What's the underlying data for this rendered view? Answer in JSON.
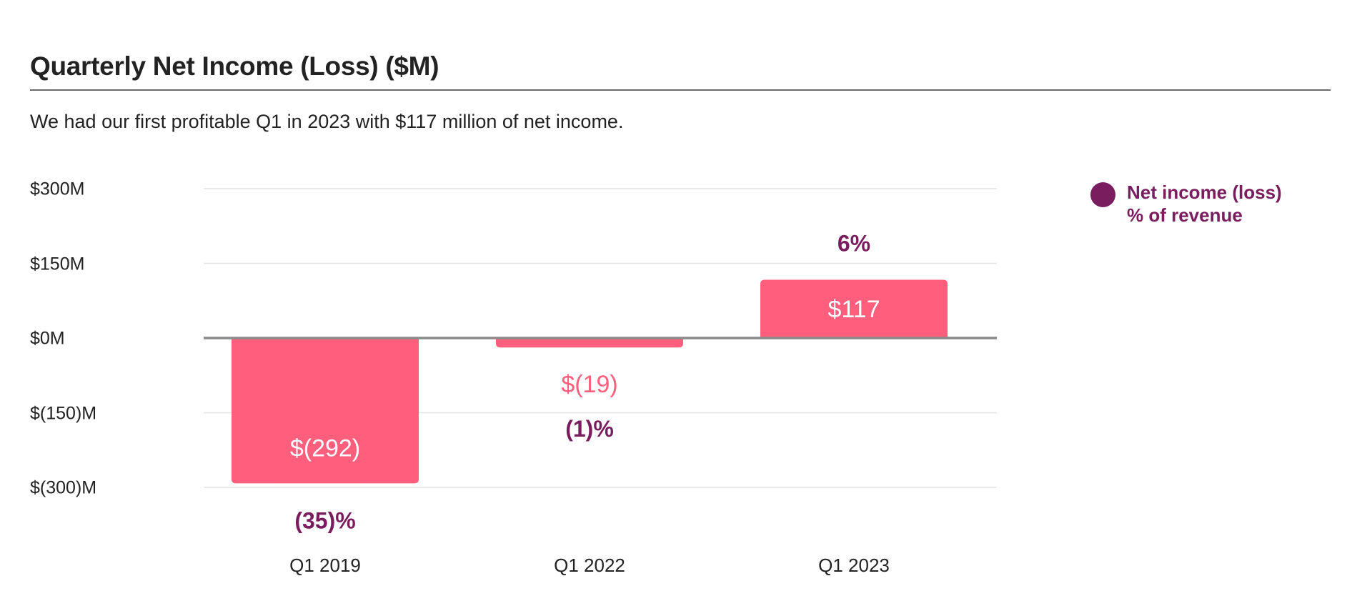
{
  "title": "Quarterly Net Income (Loss) ($M)",
  "subtitle": "We had our first profitable Q1 in 2023 with $117 million of net income.",
  "legend": {
    "line1": "Net income (loss)",
    "line2": "% of revenue",
    "color": "#7a1d5e"
  },
  "colors": {
    "bar": "#ff5f7d",
    "percent_label": "#7a1d5e",
    "axis_label": "#222222",
    "zero_line": "#8a8a8a",
    "grid": "#e4e4e4"
  },
  "chart_data": {
    "type": "bar",
    "title": "Quarterly Net Income (Loss) ($M)",
    "xlabel": "",
    "ylabel": "",
    "categories": [
      "Q1 2019",
      "Q1 2022",
      "Q1 2023"
    ],
    "series": [
      {
        "name": "Net income (loss)",
        "values": [
          -292,
          -19,
          117
        ],
        "labels": [
          "$(292)",
          "$(19)",
          "$117"
        ]
      },
      {
        "name": "% of revenue",
        "values": [
          -35,
          -1,
          6
        ],
        "labels": [
          "(35)%",
          "(1)%",
          "6%"
        ]
      }
    ],
    "ylim": [
      -300,
      300
    ],
    "yticks": [
      300,
      150,
      0,
      -150,
      -300
    ],
    "ytick_labels": [
      "$300M",
      "$150M",
      "$0M",
      "$(150)M",
      "$(300)M"
    ],
    "grid": true,
    "legend_position": "top-right"
  }
}
